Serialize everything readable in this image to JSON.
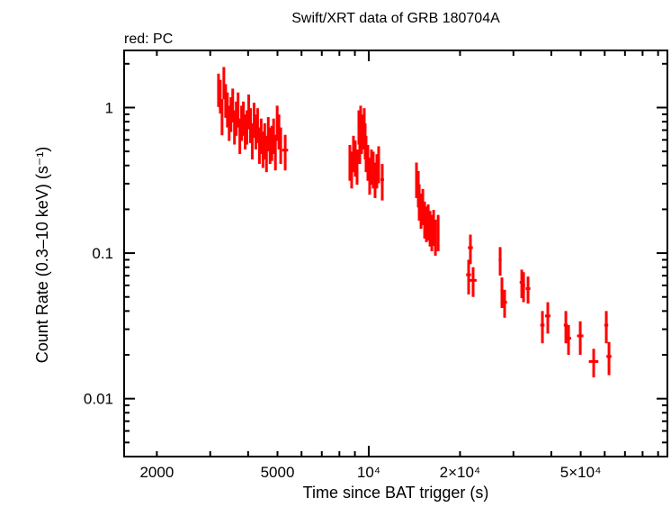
{
  "chart_data": {
    "type": "scatter",
    "title": "Swift/XRT data of GRB 180704A",
    "subtitle": "red: PC",
    "xlabel": "Time since BAT trigger (s)",
    "ylabel": "Count Rate (0.3–10 keV) (s⁻¹)",
    "xscale": "log",
    "yscale": "log",
    "xlim": [
      1560,
      96600
    ],
    "ylim": [
      0.004,
      2.47
    ],
    "grid": false,
    "x_tick_labels": [
      {
        "value": 2000,
        "label": "2000"
      },
      {
        "value": 5000,
        "label": "5000"
      },
      {
        "value": 10000,
        "label": "10⁴"
      },
      {
        "value": 20000,
        "label": "2×10⁴"
      },
      {
        "value": 50000,
        "label": "5×10⁴"
      }
    ],
    "y_tick_labels": [
      {
        "value": 1,
        "label": "1"
      },
      {
        "value": 0.1,
        "label": "0.1"
      },
      {
        "value": 0.01,
        "label": "0.01"
      }
    ],
    "series": [
      {
        "mode": "PC",
        "color": "#ff0000",
        "columns": [
          "time",
          "time_err",
          "rate",
          "rate_err"
        ],
        "points": [
          [
            3195,
            25,
            1.36,
            0.35
          ],
          [
            3238,
            25,
            1.23,
            0.32
          ],
          [
            3282,
            25,
            0.895,
            0.25
          ],
          [
            3327,
            25,
            1.52,
            0.38
          ],
          [
            3372,
            25,
            1.15,
            0.3
          ],
          [
            3418,
            25,
            1.0,
            0.27
          ],
          [
            3464,
            25,
            0.81,
            0.22
          ],
          [
            3511,
            25,
            0.93,
            0.25
          ],
          [
            3559,
            25,
            1.07,
            0.28
          ],
          [
            3607,
            25,
            0.757,
            0.2
          ],
          [
            3656,
            25,
            0.87,
            0.23
          ],
          [
            3706,
            25,
            1.0,
            0.27
          ],
          [
            3756,
            25,
            0.66,
            0.18
          ],
          [
            3807,
            25,
            0.81,
            0.22
          ],
          [
            3859,
            25,
            0.87,
            0.23
          ],
          [
            3911,
            25,
            0.706,
            0.19
          ],
          [
            3965,
            25,
            0.757,
            0.2
          ],
          [
            4019,
            25,
            0.97,
            0.26
          ],
          [
            4073,
            25,
            0.78,
            0.21
          ],
          [
            4128,
            25,
            0.61,
            0.17
          ],
          [
            4184,
            25,
            0.85,
            0.23
          ],
          [
            4241,
            25,
            0.706,
            0.19
          ],
          [
            4299,
            25,
            0.78,
            0.21
          ],
          [
            4358,
            25,
            0.57,
            0.16
          ],
          [
            4417,
            25,
            0.66,
            0.18
          ],
          [
            4477,
            25,
            0.535,
            0.15
          ],
          [
            4538,
            25,
            0.61,
            0.17
          ],
          [
            4599,
            25,
            0.5,
            0.14
          ],
          [
            4662,
            25,
            0.68,
            0.18
          ],
          [
            4725,
            25,
            0.57,
            0.16
          ],
          [
            4790,
            25,
            0.59,
            0.16
          ],
          [
            4855,
            25,
            0.66,
            0.18
          ],
          [
            4921,
            25,
            0.51,
            0.14
          ],
          [
            4988,
            25,
            0.81,
            0.22
          ],
          [
            5055,
            25,
            0.706,
            0.19
          ],
          [
            5124,
            25,
            0.57,
            0.16
          ],
          [
            5301,
            120,
            0.51,
            0.14
          ],
          [
            8663,
            60,
            0.434,
            0.12
          ],
          [
            8782,
            60,
            0.388,
            0.11
          ],
          [
            8903,
            60,
            0.5,
            0.14
          ],
          [
            9026,
            60,
            0.465,
            0.13
          ],
          [
            9150,
            60,
            0.405,
            0.11
          ],
          [
            9276,
            60,
            0.757,
            0.2
          ],
          [
            9340,
            60,
            0.57,
            0.16
          ],
          [
            9404,
            60,
            0.81,
            0.22
          ],
          [
            9468,
            60,
            0.66,
            0.18
          ],
          [
            9533,
            60,
            0.706,
            0.19
          ],
          [
            9664,
            60,
            0.78,
            0.21
          ],
          [
            9730,
            60,
            0.61,
            0.17
          ],
          [
            9797,
            60,
            0.5,
            0.14
          ],
          [
            9932,
            60,
            0.434,
            0.12
          ],
          [
            10068,
            60,
            0.352,
            0.1
          ],
          [
            10207,
            60,
            0.405,
            0.11
          ],
          [
            10347,
            60,
            0.388,
            0.11
          ],
          [
            10490,
            60,
            0.329,
            0.09
          ],
          [
            10634,
            60,
            0.378,
            0.1
          ],
          [
            10780,
            60,
            0.422,
            0.12
          ],
          [
            11079,
            150,
            0.32,
            0.09
          ],
          [
            14367,
            100,
            0.329,
            0.09
          ],
          [
            14566,
            100,
            0.286,
            0.08
          ],
          [
            14667,
            100,
            0.232,
            0.065
          ],
          [
            14870,
            100,
            0.202,
            0.055
          ],
          [
            15075,
            100,
            0.216,
            0.06
          ],
          [
            15283,
            100,
            0.176,
            0.05
          ],
          [
            15494,
            100,
            0.164,
            0.045
          ],
          [
            15707,
            100,
            0.169,
            0.047
          ],
          [
            15924,
            100,
            0.153,
            0.042
          ],
          [
            16143,
            100,
            0.143,
            0.04
          ],
          [
            16366,
            100,
            0.155,
            0.043
          ],
          [
            16591,
            100,
            0.133,
            0.037
          ],
          [
            16938,
            150,
            0.143,
            0.04
          ],
          [
            21640,
            400,
            0.109,
            0.025
          ],
          [
            21350,
            400,
            0.071,
            0.019
          ],
          [
            22090,
            600,
            0.065,
            0.015
          ],
          [
            27120,
            300,
            0.09,
            0.02
          ],
          [
            27490,
            300,
            0.055,
            0.013
          ],
          [
            28060,
            500,
            0.046,
            0.01
          ],
          [
            31960,
            500,
            0.063,
            0.014
          ],
          [
            32400,
            400,
            0.06,
            0.014
          ],
          [
            33520,
            600,
            0.057,
            0.012
          ],
          [
            37390,
            600,
            0.032,
            0.008
          ],
          [
            38950,
            800,
            0.037,
            0.009
          ],
          [
            44670,
            700,
            0.032,
            0.008
          ],
          [
            45590,
            900,
            0.026,
            0.006
          ],
          [
            49830,
            1200,
            0.027,
            0.007
          ],
          [
            55190,
            2000,
            0.018,
            0.004
          ],
          [
            60730,
            900,
            0.032,
            0.008
          ],
          [
            61990,
            1200,
            0.0195,
            0.005
          ]
        ]
      }
    ]
  }
}
